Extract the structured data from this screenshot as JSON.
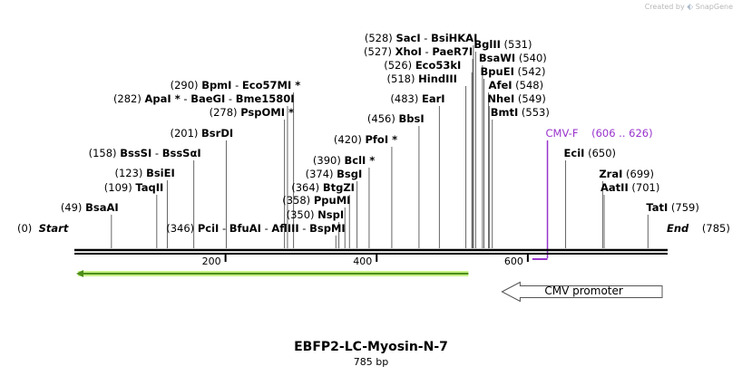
{
  "credit": {
    "prefix": "Created by",
    "brand": "SnapGene"
  },
  "sequence": {
    "name": "EBFP2-LC-Myosin-N-7",
    "length_label": "785 bp",
    "length": 785
  },
  "ruler": {
    "ticks": [
      {
        "value": 200,
        "label": "200"
      },
      {
        "value": 400,
        "label": "400"
      },
      {
        "value": 600,
        "label": "600"
      }
    ]
  },
  "ends": {
    "start": {
      "pos": "(0)",
      "name": "Start"
    },
    "end": {
      "pos": "(785)",
      "name": "End"
    }
  },
  "sites": [
    {
      "id": "bsaai",
      "pos": 49,
      "text": [
        {
          "t": "(49) ",
          "c": "pos"
        },
        {
          "t": "BsaAI",
          "c": "name"
        }
      ]
    },
    {
      "id": "taqii",
      "pos": 109,
      "text": [
        {
          "t": "(109) ",
          "c": "pos"
        },
        {
          "t": "TaqII",
          "c": "name"
        }
      ]
    },
    {
      "id": "bsiei",
      "pos": 123,
      "text": [
        {
          "t": "(123) ",
          "c": "pos"
        },
        {
          "t": "BsiEI",
          "c": "name"
        }
      ]
    },
    {
      "id": "bsssi",
      "pos": 158,
      "text": [
        {
          "t": "(158) ",
          "c": "pos"
        },
        {
          "t": "BssSI",
          "c": "name"
        },
        {
          "t": "  -  ",
          "c": "pos"
        },
        {
          "t": "BssSαI",
          "c": "name"
        }
      ]
    },
    {
      "id": "bsrdi",
      "pos": 201,
      "text": [
        {
          "t": "(201) ",
          "c": "pos"
        },
        {
          "t": "BsrDI",
          "c": "name"
        }
      ]
    },
    {
      "id": "pspomi",
      "pos": 278,
      "text": [
        {
          "t": "(278) ",
          "c": "pos"
        },
        {
          "t": "PspOMI *",
          "c": "name"
        }
      ]
    },
    {
      "id": "apai",
      "pos": 282,
      "text": [
        {
          "t": "(282) ",
          "c": "pos"
        },
        {
          "t": "ApaI *",
          "c": "name"
        },
        {
          "t": "  -  ",
          "c": "pos"
        },
        {
          "t": "BaeGI",
          "c": "name"
        },
        {
          "t": "  -  ",
          "c": "pos"
        },
        {
          "t": "Bme1580I",
          "c": "name"
        }
      ]
    },
    {
      "id": "bpmi",
      "pos": 290,
      "text": [
        {
          "t": "(290) ",
          "c": "pos"
        },
        {
          "t": "BpmI",
          "c": "name"
        },
        {
          "t": "  -  ",
          "c": "pos"
        },
        {
          "t": "Eco57MI *",
          "c": "name"
        }
      ]
    },
    {
      "id": "pcii",
      "pos": 346,
      "text": [
        {
          "t": "(346) ",
          "c": "pos"
        },
        {
          "t": "PciI",
          "c": "name"
        },
        {
          "t": "  -  ",
          "c": "pos"
        },
        {
          "t": "BfuAI",
          "c": "name"
        },
        {
          "t": "  -  ",
          "c": "pos"
        },
        {
          "t": "AflIII",
          "c": "name"
        },
        {
          "t": "  -  ",
          "c": "pos"
        },
        {
          "t": "BspMI",
          "c": "name"
        }
      ]
    },
    {
      "id": "nspi",
      "pos": 350,
      "text": [
        {
          "t": "(350) ",
          "c": "pos"
        },
        {
          "t": "NspI",
          "c": "name"
        }
      ]
    },
    {
      "id": "ppumi",
      "pos": 358,
      "text": [
        {
          "t": "(358) ",
          "c": "pos"
        },
        {
          "t": "PpuMI",
          "c": "name"
        }
      ]
    },
    {
      "id": "btgzi",
      "pos": 364,
      "text": [
        {
          "t": "(364) ",
          "c": "pos"
        },
        {
          "t": "BtgZI",
          "c": "name"
        }
      ]
    },
    {
      "id": "bsgi",
      "pos": 374,
      "text": [
        {
          "t": "(374) ",
          "c": "pos"
        },
        {
          "t": "BsgI",
          "c": "name"
        }
      ]
    },
    {
      "id": "bcli",
      "pos": 390,
      "text": [
        {
          "t": "(390) ",
          "c": "pos"
        },
        {
          "t": "BclI *",
          "c": "name"
        }
      ]
    },
    {
      "id": "pfoi",
      "pos": 420,
      "text": [
        {
          "t": "(420) ",
          "c": "pos"
        },
        {
          "t": "PfoI *",
          "c": "name"
        }
      ]
    },
    {
      "id": "bbsi",
      "pos": 456,
      "text": [
        {
          "t": "(456) ",
          "c": "pos"
        },
        {
          "t": "BbsI",
          "c": "name"
        }
      ]
    },
    {
      "id": "eari",
      "pos": 483,
      "text": [
        {
          "t": "(483) ",
          "c": "pos"
        },
        {
          "t": "EarI",
          "c": "name"
        }
      ]
    },
    {
      "id": "hindiii",
      "pos": 518,
      "text": [
        {
          "t": "(518) ",
          "c": "pos"
        },
        {
          "t": "HindIII",
          "c": "name"
        }
      ]
    },
    {
      "id": "eco53ki",
      "pos": 526,
      "text": [
        {
          "t": "(526) ",
          "c": "pos"
        },
        {
          "t": "Eco53kI",
          "c": "name"
        }
      ]
    },
    {
      "id": "xhoi",
      "pos": 527,
      "text": [
        {
          "t": "(527) ",
          "c": "pos"
        },
        {
          "t": "XhoI",
          "c": "name"
        },
        {
          "t": "  -  ",
          "c": "pos"
        },
        {
          "t": "PaeR7I",
          "c": "name"
        }
      ]
    },
    {
      "id": "saci",
      "pos": 528,
      "text": [
        {
          "t": "(528) ",
          "c": "pos"
        },
        {
          "t": "SacI",
          "c": "name"
        },
        {
          "t": "  -  ",
          "c": "pos"
        },
        {
          "t": "BsiHKAI",
          "c": "name"
        }
      ]
    },
    {
      "id": "bglii",
      "pos": 531,
      "text": [
        {
          "t": "BglII",
          "c": "name"
        },
        {
          "t": "  (531)",
          "c": "pos"
        }
      ]
    },
    {
      "id": "bsawi",
      "pos": 540,
      "text": [
        {
          "t": "BsaWI",
          "c": "name"
        },
        {
          "t": "  (540)",
          "c": "pos"
        }
      ]
    },
    {
      "id": "bpuei",
      "pos": 542,
      "text": [
        {
          "t": "BpuEI",
          "c": "name"
        },
        {
          "t": "  (542)",
          "c": "pos"
        }
      ]
    },
    {
      "id": "afei",
      "pos": 548,
      "text": [
        {
          "t": "AfeI",
          "c": "name"
        },
        {
          "t": "  (548)",
          "c": "pos"
        }
      ]
    },
    {
      "id": "nhei",
      "pos": 549,
      "text": [
        {
          "t": "NheI",
          "c": "name"
        },
        {
          "t": "  (549)",
          "c": "pos"
        }
      ]
    },
    {
      "id": "bmti",
      "pos": 553,
      "text": [
        {
          "t": "BmtI",
          "c": "name"
        },
        {
          "t": "  (553)",
          "c": "pos"
        }
      ]
    },
    {
      "id": "ecii",
      "pos": 650,
      "text": [
        {
          "t": "EciI",
          "c": "name"
        },
        {
          "t": "  (650)",
          "c": "pos"
        }
      ]
    },
    {
      "id": "zrai",
      "pos": 699,
      "text": [
        {
          "t": "ZraI",
          "c": "name"
        },
        {
          "t": "  (699)",
          "c": "pos"
        }
      ]
    },
    {
      "id": "aatii",
      "pos": 701,
      "text": [
        {
          "t": "AatII",
          "c": "name"
        },
        {
          "t": "  (701)",
          "c": "pos"
        }
      ]
    },
    {
      "id": "tati",
      "pos": 759,
      "text": [
        {
          "t": "TatI",
          "c": "name"
        },
        {
          "t": "  (759)",
          "c": "pos"
        }
      ]
    }
  ],
  "primer": {
    "name": "CMV-F",
    "range": "(606 .. 626)",
    "start": 606,
    "end": 626,
    "color": "#9933cc"
  },
  "features": [
    {
      "id": "cmv-promoter",
      "label": "CMV promoter",
      "start": 531,
      "end": 785,
      "direction": "reverse",
      "color": "#ffffff"
    },
    {
      "id": "ebfp2-orf",
      "label": "",
      "start": 0,
      "end": 519,
      "direction": "reverse",
      "color": "#4c8d1a"
    }
  ]
}
